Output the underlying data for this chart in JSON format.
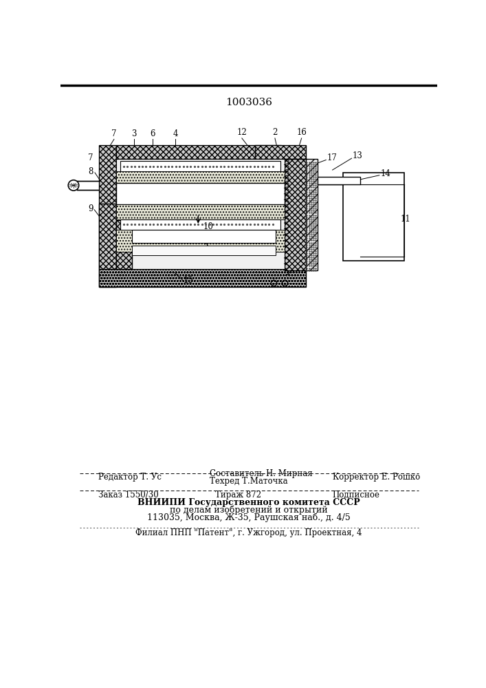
{
  "patent_number": "1003036",
  "bg_color": "#ffffff",
  "line_color": "#000000",
  "editor_line": "Редактор Т. Ус",
  "composer_line1": "Составитель Н. Мирная",
  "composer_line2": "Техред Т.Маточка",
  "corrector_line": "Корректор Е. Рошко",
  "order_line": "Заказ 1550/30",
  "tirage_line": "Тираж 872",
  "podpisnoe_line": "Подписное",
  "org_line1": "ВНИИПИ Государственного комитета СССР",
  "org_line2": "по делам изобретений и открытий",
  "org_line3": "113035, Москва, Ж-35, Раушская наб., д. 4/5",
  "filial_line": "Филиал ПНП \"Патент\", г. Ужгород, ул. Проектная, 4"
}
